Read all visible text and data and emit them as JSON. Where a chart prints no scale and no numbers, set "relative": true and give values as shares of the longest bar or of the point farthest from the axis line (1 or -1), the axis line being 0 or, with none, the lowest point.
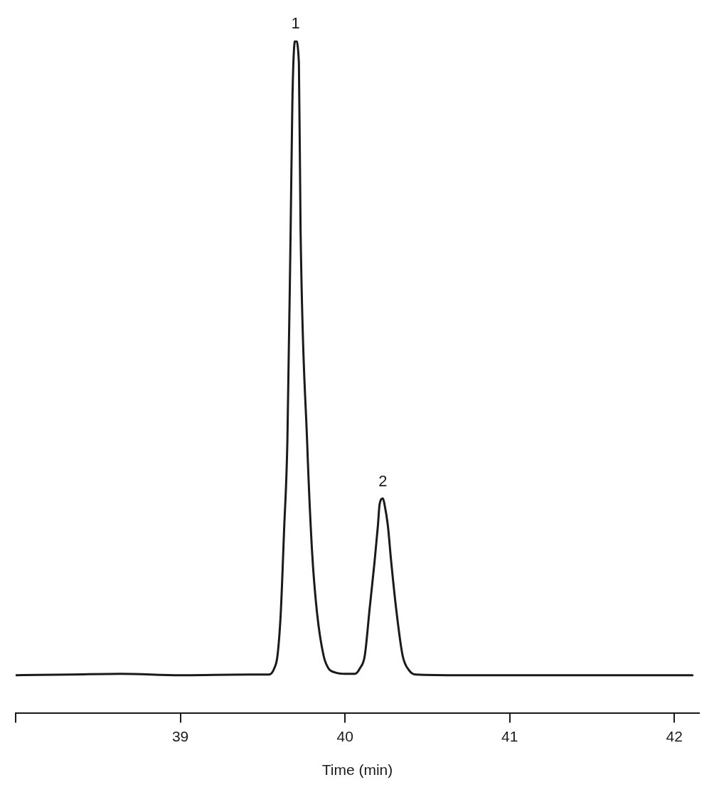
{
  "chart_data": {
    "type": "line",
    "relative": true,
    "xlabel": "Time (min)",
    "xlim": [
      38.0,
      42.15
    ],
    "xticks": [
      {
        "value": 38,
        "label": null
      },
      39,
      40,
      41,
      42
    ],
    "grid": false,
    "legend": false,
    "marker": "none",
    "line_style": "solid",
    "tick_labels": "x",
    "annotations": [
      {
        "text": "1",
        "x": 39.7,
        "y": 1
      },
      {
        "text": "2",
        "x": 40.23,
        "y": 0.319
      }
    ],
    "series": [
      {
        "color": "#1a1a1a",
        "x": [
          38.0,
          38.34,
          38.64,
          39.0,
          39.42,
          39.54,
          39.57,
          39.59,
          39.61,
          39.63,
          39.65,
          39.67,
          39.68,
          39.69,
          39.7,
          39.72,
          39.73,
          39.77,
          39.8,
          39.83,
          39.87,
          39.9,
          39.94,
          40.0,
          40.06,
          40.09,
          40.12,
          40.15,
          40.18,
          40.2,
          40.21,
          40.23,
          40.24,
          40.26,
          40.28,
          40.31,
          40.35,
          40.39,
          40.43,
          40.71,
          41.36,
          42.11
        ],
        "values": [
          0.056,
          0.057,
          0.058,
          0.056,
          0.057,
          0.057,
          0.066,
          0.085,
          0.149,
          0.271,
          0.403,
          0.721,
          0.902,
          0.986,
          1,
          0.967,
          0.721,
          0.403,
          0.24,
          0.149,
          0.085,
          0.066,
          0.06,
          0.058,
          0.058,
          0.066,
          0.085,
          0.156,
          0.226,
          0.279,
          0.31,
          0.319,
          0.31,
          0.279,
          0.226,
          0.156,
          0.085,
          0.063,
          0.057,
          0.056,
          0.056,
          0.056
        ]
      }
    ]
  }
}
